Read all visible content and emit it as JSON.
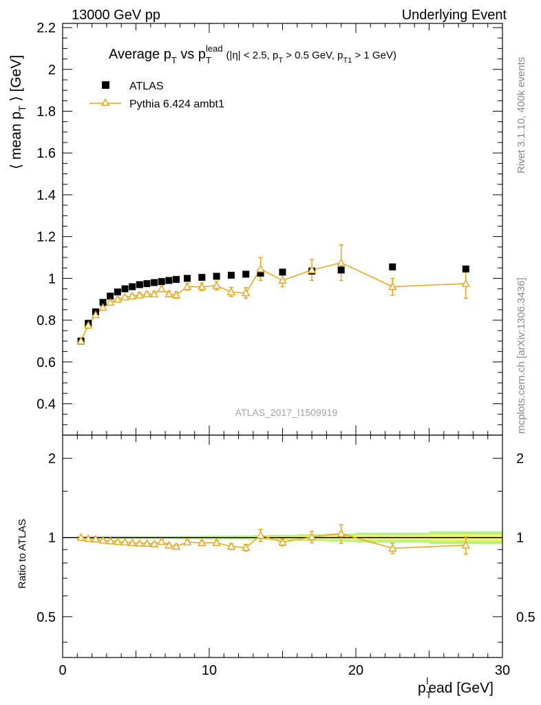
{
  "header": {
    "energy": "13000 GeV pp",
    "analysis": "Underlying Event"
  },
  "plot_title": {
    "main": "Average p",
    "main_sub": "T",
    "vs": " vs p",
    "vs_sub": "T",
    "vs_sup": "lead",
    "cuts": "(|η| < 2.5, p",
    "cuts_sub1": "T",
    "cuts_mid": " > 0.5 GeV, p",
    "cuts_sub2": "T1",
    "cuts_end": " > 1 GeV)"
  },
  "side_labels": {
    "rivet": "Rivet 3.1.10,  400k events",
    "mcplots": "mcplots.cern.ch [arXiv:1306.3436]"
  },
  "watermark": "ATLAS_2017_I1509919",
  "axes": {
    "ylabel_main": "⟨ mean p",
    "ylabel_main_sub": "T",
    "ylabel_main_end": " ⟩ [GeV]",
    "ylabel_ratio": "Ratio to ATLAS",
    "xlabel": "p",
    "xlabel_sub": "T",
    "xlabel_sup": "l",
    "xlabel_end": "ead [GeV]"
  },
  "legend": [
    {
      "label": "ATLAS",
      "marker": "square",
      "color": "#000000"
    },
    {
      "label": "Pythia 6.424 ambt1",
      "marker": "triangle",
      "color": "#e8a317"
    }
  ],
  "chart_data": [
    {
      "type": "scatter",
      "panel": "main",
      "xlim": [
        0,
        30
      ],
      "ylim": [
        0.25,
        2.22
      ],
      "x_ticks": [
        0,
        10,
        20,
        30
      ],
      "y_ticks": [
        0.4,
        0.6,
        0.8,
        1,
        1.2,
        1.4,
        1.6,
        1.8,
        2,
        2.2
      ],
      "series": [
        {
          "name": "ATLAS",
          "x": [
            1.25,
            1.75,
            2.25,
            2.75,
            3.25,
            3.75,
            4.25,
            4.75,
            5.25,
            5.75,
            6.25,
            6.75,
            7.25,
            7.75,
            8.5,
            9.5,
            10.5,
            11.5,
            12.5,
            13.5,
            15.0,
            17.0,
            19.0,
            22.5,
            27.5
          ],
          "y": [
            0.7,
            0.785,
            0.84,
            0.885,
            0.915,
            0.935,
            0.95,
            0.96,
            0.97,
            0.975,
            0.98,
            0.985,
            0.99,
            0.995,
            1.0,
            1.005,
            1.01,
            1.015,
            1.02,
            1.025,
            1.03,
            1.035,
            1.04,
            1.055,
            1.045
          ]
        },
        {
          "name": "Pythia 6.424 ambt1",
          "x": [
            1.25,
            1.75,
            2.25,
            2.75,
            3.25,
            3.75,
            4.25,
            4.75,
            5.25,
            5.75,
            6.25,
            6.75,
            7.25,
            7.75,
            8.5,
            9.5,
            10.5,
            11.5,
            12.5,
            13.5,
            15.0,
            17.0,
            19.0,
            22.5,
            27.5
          ],
          "y": [
            0.7,
            0.775,
            0.825,
            0.86,
            0.885,
            0.9,
            0.91,
            0.915,
            0.92,
            0.925,
            0.925,
            0.95,
            0.925,
            0.92,
            0.96,
            0.96,
            0.965,
            0.935,
            0.93,
            1.045,
            0.99,
            1.04,
            1.075,
            0.96,
            0.975
          ],
          "err": [
            0.005,
            0.005,
            0.006,
            0.006,
            0.007,
            0.008,
            0.008,
            0.009,
            0.01,
            0.01,
            0.012,
            0.014,
            0.014,
            0.015,
            0.016,
            0.018,
            0.02,
            0.022,
            0.025,
            0.055,
            0.03,
            0.05,
            0.085,
            0.04,
            0.07
          ]
        }
      ]
    },
    {
      "type": "line",
      "panel": "ratio",
      "xlim": [
        0,
        30
      ],
      "ylim": [
        0.35,
        2.45
      ],
      "log_y": true,
      "y_ticks": [
        0.5,
        1,
        2
      ],
      "series": [
        {
          "name": "Pythia 6.424 ambt1",
          "x": [
            1.25,
            1.75,
            2.25,
            2.75,
            3.25,
            3.75,
            4.25,
            4.75,
            5.25,
            5.75,
            6.25,
            6.75,
            7.25,
            7.75,
            8.5,
            9.5,
            10.5,
            11.5,
            12.5,
            13.5,
            15.0,
            17.0,
            19.0,
            22.5,
            27.5
          ],
          "y": [
            1.0,
            0.99,
            0.985,
            0.975,
            0.97,
            0.965,
            0.96,
            0.955,
            0.95,
            0.95,
            0.945,
            0.965,
            0.935,
            0.925,
            0.96,
            0.955,
            0.955,
            0.925,
            0.915,
            1.02,
            0.96,
            1.005,
            1.035,
            0.91,
            0.935
          ],
          "err": [
            0.006,
            0.006,
            0.007,
            0.007,
            0.008,
            0.009,
            0.009,
            0.01,
            0.011,
            0.011,
            0.013,
            0.015,
            0.015,
            0.016,
            0.017,
            0.019,
            0.021,
            0.023,
            0.026,
            0.055,
            0.03,
            0.05,
            0.085,
            0.04,
            0.07
          ]
        }
      ],
      "data_band": {
        "x": [
          1.25,
          1.75,
          2.25,
          2.75,
          3.25,
          3.75,
          4.25,
          4.75,
          5.25,
          5.75,
          6.25,
          6.75,
          7.25,
          7.75,
          8.5,
          9.5,
          10.5,
          11.5,
          12.5,
          13.5,
          15.0,
          17.0,
          19.0,
          22.5,
          27.5
        ],
        "halfwidth": [
          0.25,
          0.25,
          0.25,
          0.25,
          0.25,
          0.25,
          0.25,
          0.25,
          0.25,
          0.25,
          0.25,
          0.25,
          0.25,
          0.25,
          0.5,
          0.5,
          0.5,
          0.5,
          0.5,
          0.5,
          1.0,
          1.0,
          1.0,
          2.5,
          2.5
        ],
        "rel": [
          0.006,
          0.006,
          0.006,
          0.006,
          0.006,
          0.006,
          0.006,
          0.006,
          0.006,
          0.006,
          0.006,
          0.006,
          0.006,
          0.006,
          0.007,
          0.007,
          0.008,
          0.008,
          0.009,
          0.01,
          0.012,
          0.015,
          0.018,
          0.022,
          0.028
        ],
        "color_inner": "#f5f56a",
        "color_outer": "#b8f08a"
      }
    }
  ]
}
